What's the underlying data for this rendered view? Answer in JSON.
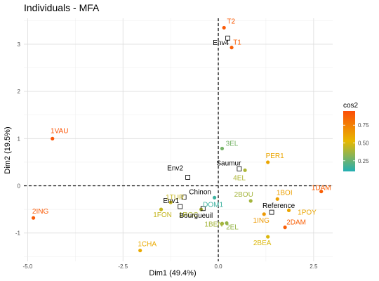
{
  "chart_data": {
    "type": "scatter",
    "title": "Individuals - MFA",
    "xlabel": "Dim1 (49.4%)",
    "ylabel": "Dim2 (19.5%)",
    "xlim": [
      -5.1,
      3.0
    ],
    "ylim": [
      -1.6,
      3.55
    ],
    "xticks": [
      -5.0,
      -2.5,
      0.0,
      2.5
    ],
    "xtick_labels": [
      "-5.0",
      "-2.5",
      "0.0",
      "2.5"
    ],
    "yticks": [
      -1,
      0,
      1,
      2,
      3
    ],
    "ytick_labels": [
      "-1",
      "0",
      "1",
      "2",
      "3"
    ],
    "grid": true,
    "reference_lines": {
      "x": 0,
      "y": 0,
      "style": "dashed"
    },
    "legend": {
      "title": "cos2",
      "position": "right",
      "ticks": [
        0.25,
        0.5,
        0.75
      ],
      "tick_labels": [
        "0.25",
        "0.50",
        "0.75"
      ],
      "range": [
        0.1,
        0.95
      ],
      "gradient": [
        "#23AFB3",
        "#E7B800",
        "#FC4E07"
      ]
    },
    "individuals": [
      {
        "label": "T2",
        "x": 0.15,
        "y": 3.35,
        "cos2": 0.9
      },
      {
        "label": "T1",
        "x": 0.35,
        "y": 2.93,
        "cos2": 0.88
      },
      {
        "label": "1VAU",
        "x": -4.35,
        "y": 1.0,
        "cos2": 0.92
      },
      {
        "label": "3EL",
        "x": 0.1,
        "y": 0.79,
        "cos2": 0.28
      },
      {
        "label": "PER1",
        "x": 1.3,
        "y": 0.5,
        "cos2": 0.6
      },
      {
        "label": "4EL",
        "x": 0.7,
        "y": 0.33,
        "cos2": 0.4
      },
      {
        "label": "1DAM",
        "x": 2.7,
        "y": -0.12,
        "cos2": 0.88
      },
      {
        "label": "1BOI",
        "x": 1.55,
        "y": -0.28,
        "cos2": 0.62
      },
      {
        "label": "2BOU",
        "x": 0.85,
        "y": -0.32,
        "cos2": 0.38
      },
      {
        "label": "1TUR",
        "x": -1.25,
        "y": -0.35,
        "cos2": 0.45
      },
      {
        "label": "DOM1",
        "x": -0.1,
        "y": -0.25,
        "cos2": 0.15
      },
      {
        "label": "1POY",
        "x": 1.85,
        "y": -0.52,
        "cos2": 0.6
      },
      {
        "label": "1ING",
        "x": 1.2,
        "y": -0.6,
        "cos2": 0.65
      },
      {
        "label": "2ING",
        "x": -4.85,
        "y": -0.68,
        "cos2": 0.9
      },
      {
        "label": "1FON",
        "x": -1.5,
        "y": -0.5,
        "cos2": 0.45
      },
      {
        "label": "1ROC",
        "x": -0.45,
        "y": -0.5,
        "cos2": 0.4
      },
      {
        "label": "1BEN",
        "x": 0.1,
        "y": -0.8,
        "cos2": 0.38
      },
      {
        "label": "2EL",
        "x": 0.22,
        "y": -0.79,
        "cos2": 0.35
      },
      {
        "label": "2DAM",
        "x": 1.75,
        "y": -0.88,
        "cos2": 0.88
      },
      {
        "label": "2BEA",
        "x": 1.3,
        "y": -1.08,
        "cos2": 0.5
      },
      {
        "label": "1CHA",
        "x": -2.05,
        "y": -1.37,
        "cos2": 0.58
      }
    ],
    "supplementary_qualitative": [
      {
        "label": "Env4",
        "x": 0.25,
        "y": 3.13
      },
      {
        "label": "Saumur",
        "x": 0.55,
        "y": 0.36
      },
      {
        "label": "Env2",
        "x": -0.8,
        "y": 0.18
      },
      {
        "label": "Chinon",
        "x": -0.9,
        "y": -0.24
      },
      {
        "label": "Env1",
        "x": -1.0,
        "y": -0.44
      },
      {
        "label": "Bourgueuil",
        "x": -0.4,
        "y": -0.48
      },
      {
        "label": "Reference",
        "x": 1.4,
        "y": -0.56
      }
    ]
  }
}
